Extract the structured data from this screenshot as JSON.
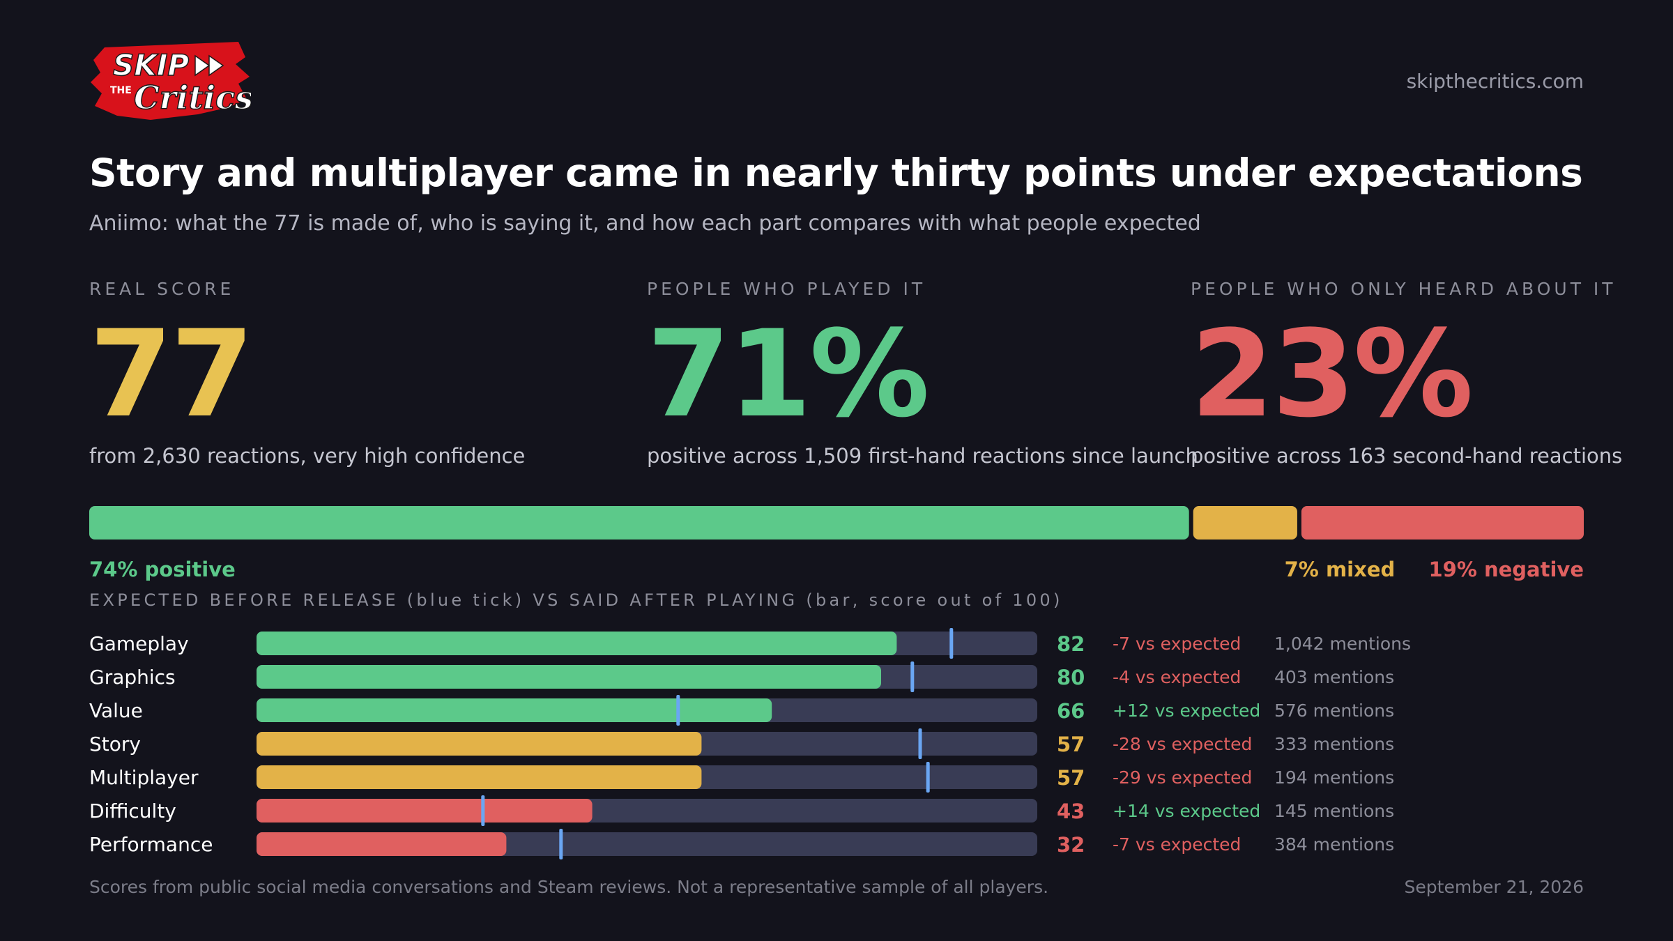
{
  "brand": {
    "logo_line1": "SKIP",
    "logo_small": "THE",
    "logo_line2": "Critics",
    "site": "skipthecritics.com"
  },
  "headline": {
    "title": "Story and multiplayer came in nearly thirty points under expectations",
    "subtitle": "Aniimo: what the 77 is made of, who is saying it, and how each part compares with what people expected"
  },
  "kpis": [
    {
      "label": "REAL SCORE",
      "value": "77",
      "note": "from 2,630 reactions, very high confidence",
      "color": "#e8c252"
    },
    {
      "label": "PEOPLE WHO PLAYED IT",
      "value": "71%",
      "note": "positive across 1,509 first-hand reactions since launch",
      "color": "#5cc98a"
    },
    {
      "label": "PEOPLE WHO ONLY HEARD ABOUT IT",
      "value": "23%",
      "note": "positive across 163 second-hand reactions",
      "color": "#e06060"
    }
  ],
  "distribution": {
    "positive": {
      "pct": 74,
      "label": "74% positive",
      "color": "#5cc98a"
    },
    "mixed": {
      "pct": 7,
      "label": "7% mixed",
      "color": "#e3b248"
    },
    "negative": {
      "pct": 19,
      "label": "19% negative",
      "color": "#e06060"
    }
  },
  "section_heading": "EXPECTED BEFORE RELEASE (blue tick) VS SAID AFTER PLAYING (bar, score out of 100)",
  "chart_data": {
    "type": "bar",
    "title": "EXPECTED BEFORE RELEASE (blue tick) VS SAID AFTER PLAYING (bar, score out of 100)",
    "xlim": [
      0,
      100
    ],
    "categories": [
      "Gameplay",
      "Graphics",
      "Value",
      "Story",
      "Multiplayer",
      "Difficulty",
      "Performance"
    ],
    "series": [
      {
        "name": "SAID AFTER PLAYING",
        "values": [
          82,
          80,
          66,
          57,
          57,
          43,
          32
        ]
      },
      {
        "name": "EXPECTED BEFORE RELEASE",
        "values": [
          89,
          84,
          54,
          85,
          86,
          29,
          39
        ]
      }
    ],
    "delta_labels": [
      "-7 vs expected",
      "-4 vs expected",
      "+12 vs expected",
      "-28 vs expected",
      "-29 vs expected",
      "+14 vs expected",
      "-7 vs expected"
    ],
    "mentions": [
      "1,042 mentions",
      "403 mentions",
      "576 mentions",
      "333 mentions",
      "194 mentions",
      "145 mentions",
      "384 mentions"
    ]
  },
  "colors": {
    "high": "#5cc98a",
    "mid": "#e3b248",
    "low": "#e06060",
    "track": "#393c55",
    "tick": "#6aa6f3",
    "bg": "#13131c"
  },
  "footer": {
    "note": "Scores from public social media conversations and Steam reviews. Not a representative sample of all players.",
    "date": "September 21, 2026"
  }
}
